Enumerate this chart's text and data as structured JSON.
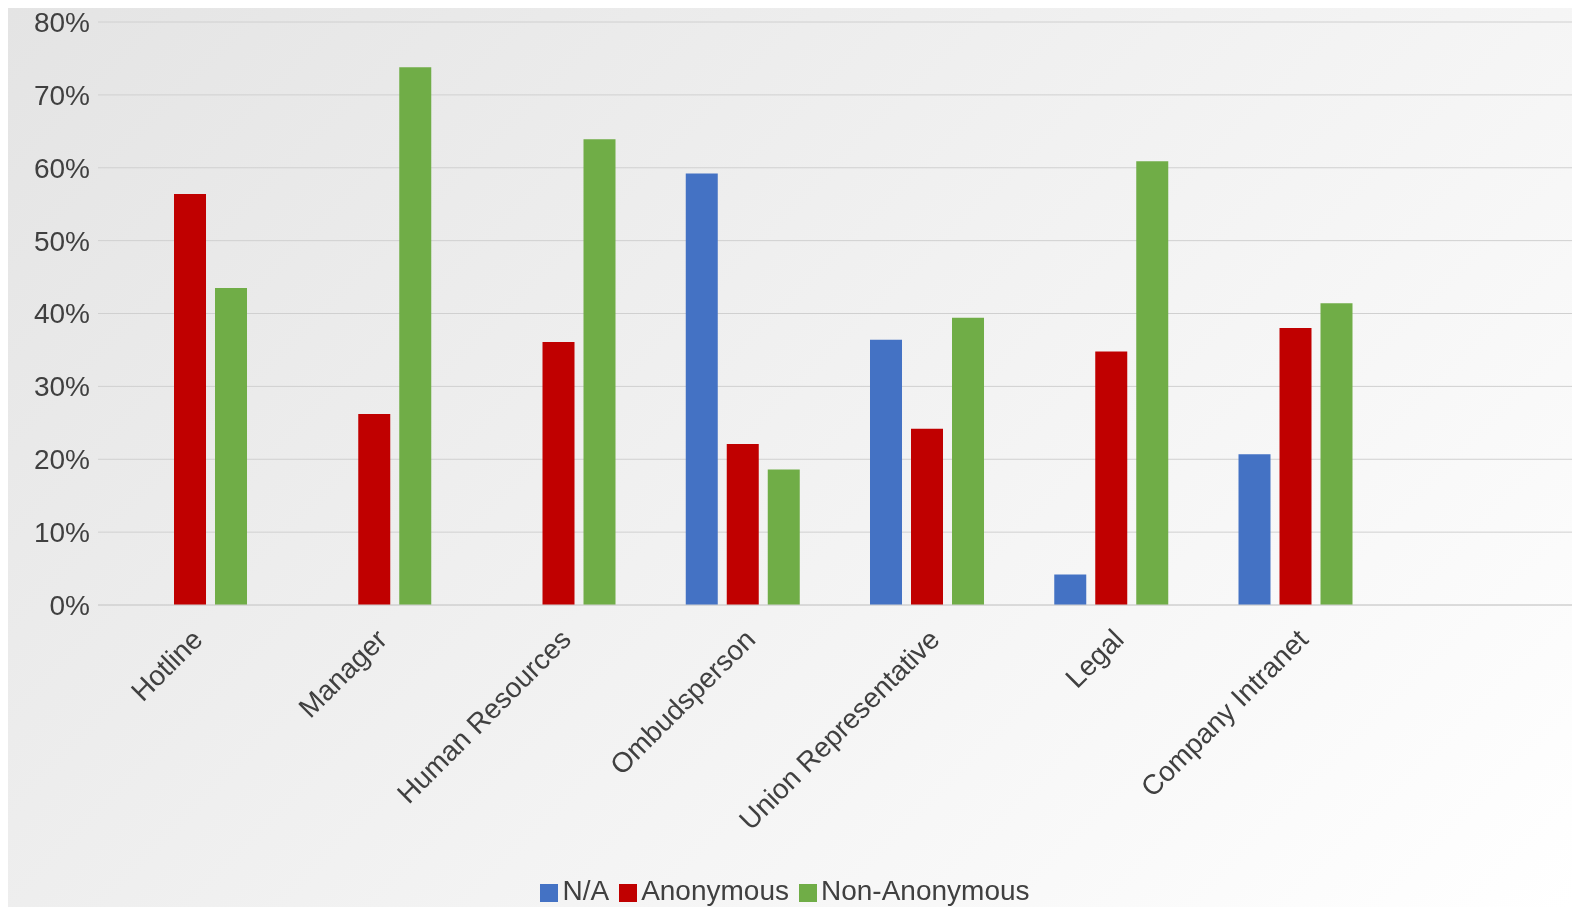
{
  "chart_data": {
    "type": "bar",
    "categories": [
      "Hotline",
      "Manager",
      "Human Resources",
      "Ombudsperson",
      "Union Representative",
      "Legal",
      "Company Intranet",
      null
    ],
    "series": [
      {
        "name": "N/A",
        "color": "#4472c4",
        "values": [
          0,
          0,
          0,
          59.2,
          36.4,
          4.2,
          20.7,
          null
        ]
      },
      {
        "name": "Anonymous",
        "color": "#c00000",
        "values": [
          56.4,
          26.2,
          36.1,
          22.1,
          24.2,
          34.8,
          38.0,
          null
        ]
      },
      {
        "name": "Non-Anonymous",
        "color": "#70ad47",
        "values": [
          43.5,
          73.8,
          63.9,
          18.6,
          39.4,
          60.9,
          41.4,
          null
        ]
      }
    ],
    "ylim": [
      0,
      80
    ],
    "yticks": [
      {
        "value": 0,
        "label": "0%"
      },
      {
        "value": 10,
        "label": "10%"
      },
      {
        "value": 20,
        "label": "20%"
      },
      {
        "value": 30,
        "label": "30%"
      },
      {
        "value": 40,
        "label": "40%"
      },
      {
        "value": 50,
        "label": "50%"
      },
      {
        "value": 60,
        "label": "60%"
      },
      {
        "value": 70,
        "label": "70%"
      },
      {
        "value": 80,
        "label": "80%"
      }
    ],
    "grid": "y",
    "legend": "bottom"
  }
}
